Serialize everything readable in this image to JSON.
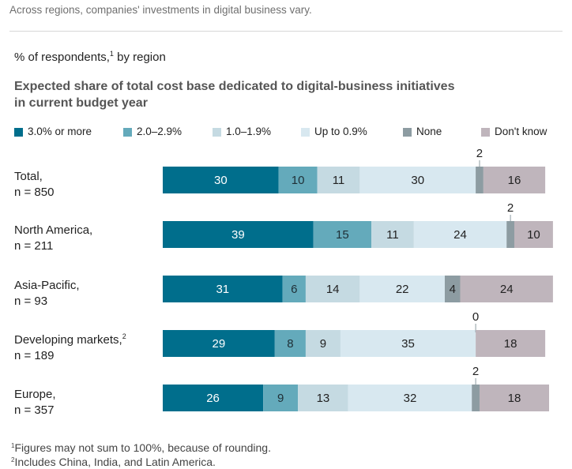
{
  "caption": "Across regions, companies' investments in digital business vary.",
  "subtitle_text": "% of respondents,",
  "subtitle_note": "1",
  "subtitle_suffix": " by region",
  "chart_data": {
    "type": "bar",
    "orientation": "horizontal-stacked",
    "title_line1": "Expected share of total cost base dedicated to digital-business initiatives",
    "title_line2": "in current budget year",
    "categories": [
      {
        "name": "Total,",
        "n": "n = 850",
        "note": ""
      },
      {
        "name": "North America,",
        "n": "n = 211",
        "note": ""
      },
      {
        "name": "Asia-Pacific,",
        "n": "n = 93",
        "note": ""
      },
      {
        "name": "Developing markets,",
        "n": "n = 189",
        "note": "2"
      },
      {
        "name": "Europe,",
        "n": "n = 357",
        "note": ""
      }
    ],
    "series": [
      {
        "name": "3.0% or more",
        "color": "#006e8c",
        "label_color": "#ffffff",
        "values": [
          30,
          39,
          31,
          29,
          26
        ]
      },
      {
        "name": "2.0–2.9%",
        "color": "#64aabb",
        "label_color": "#1f2f36",
        "values": [
          10,
          15,
          6,
          8,
          9
        ]
      },
      {
        "name": "1.0–1.9%",
        "color": "#c5dae2",
        "label_color": "#222222",
        "values": [
          11,
          11,
          14,
          9,
          13
        ]
      },
      {
        "name": "Up to 0.9%",
        "color": "#d8e8f0",
        "label_color": "#222222",
        "values": [
          30,
          24,
          22,
          35,
          32
        ]
      },
      {
        "name": "None",
        "color": "#8d9ca2",
        "label_color": "#222222",
        "values": [
          2,
          2,
          4,
          0,
          2
        ]
      },
      {
        "name": "Don't know",
        "color": "#bfb5bc",
        "label_color": "#222222",
        "values": [
          16,
          10,
          24,
          18,
          18
        ]
      }
    ],
    "xlim": [
      0,
      100
    ],
    "legend_position": "top",
    "grid": false
  },
  "footnotes": [
    {
      "mark": "1",
      "text": "Figures may not sum to 100%, because of rounding."
    },
    {
      "mark": "2",
      "text": "Includes China, India, and Latin America."
    }
  ]
}
